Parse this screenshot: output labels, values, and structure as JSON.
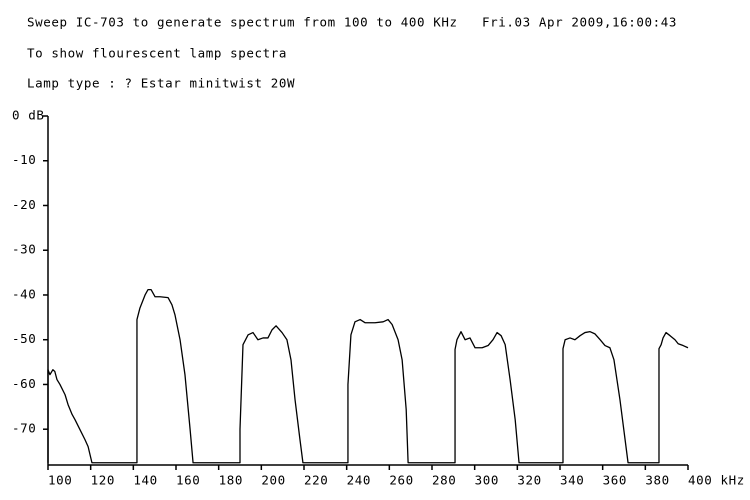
{
  "chart_data": {
    "type": "line",
    "title": "Sweep IC-703 to generate spectrum from 100 to 400 KHz   Fri.03 Apr 2009,16:00:43",
    "subtitle": "To show flourescent lamp spectra",
    "caption": "Lamp type : ? Estar minitwist 20W",
    "color": "#000000",
    "xlim": [
      100,
      400
    ],
    "xticks": [
      100,
      120,
      140,
      160,
      180,
      200,
      220,
      240,
      260,
      280,
      300,
      320,
      340,
      360,
      380,
      {
        "value": 400,
        "label": "400 kHz"
      }
    ],
    "ylim": [
      -78,
      0
    ],
    "yticks": [
      {
        "value": 0,
        "label": "0 dB"
      },
      -10,
      -20,
      -30,
      -40,
      -50,
      -60,
      -70
    ],
    "grid": false,
    "x": [
      100,
      100,
      100.9,
      102.3,
      103.2,
      104.2,
      105.6,
      108,
      109.4,
      111.3,
      112.7,
      115,
      117.3,
      118.8,
      120.6,
      141.7,
      141.7,
      143.1,
      145.5,
      146.9,
      148.3,
      150.2,
      152.5,
      156.3,
      158.1,
      159.5,
      161.9,
      164.2,
      166.6,
      168,
      190,
      190,
      191.4,
      193.8,
      196.1,
      198.4,
      200.8,
      203.1,
      205,
      206.9,
      209.7,
      212,
      213.9,
      215.8,
      218.1,
      219.5,
      240.6,
      240.6,
      242,
      243.9,
      246.3,
      248.6,
      253.3,
      257.1,
      259.4,
      261.3,
      264.1,
      266,
      267.9,
      268.8,
      290.8,
      290.8,
      291.7,
      293.6,
      295.5,
      297.8,
      300.2,
      303.5,
      306.3,
      308.6,
      310.5,
      312.4,
      314.3,
      316.6,
      319,
      320.8,
      341.4,
      341.4,
      342.4,
      344.7,
      347,
      349.4,
      351.7,
      354.1,
      356.4,
      358.8,
      361.1,
      363.4,
      365.3,
      368.1,
      370.5,
      371.9,
      386.4,
      386.4,
      387.4,
      388.3,
      389.7,
      391.6,
      393.9,
      395.4,
      397.7,
      400
    ],
    "values": [
      -77.5,
      -56.7,
      -57.8,
      -56.7,
      -57.1,
      -58.9,
      -60,
      -62.3,
      -64.5,
      -66.7,
      -67.9,
      -70.1,
      -72.3,
      -73.9,
      -77.5,
      -77.5,
      -45.5,
      -42.9,
      -40,
      -38.8,
      -38.8,
      -40.4,
      -40.4,
      -40.6,
      -42.2,
      -44.4,
      -50,
      -57.8,
      -70,
      -77.5,
      -77.5,
      -70,
      -51.1,
      -48.9,
      -48.4,
      -50,
      -49.6,
      -49.6,
      -47.8,
      -46.9,
      -48.4,
      -50,
      -54.5,
      -63.4,
      -72.3,
      -77.5,
      -77.5,
      -60,
      -48.9,
      -46,
      -45.5,
      -46.2,
      -46.2,
      -46,
      -45.5,
      -46.6,
      -50,
      -54.5,
      -65.6,
      -77.5,
      -77.5,
      -52.2,
      -50,
      -48.2,
      -50,
      -49.6,
      -51.8,
      -51.8,
      -51.3,
      -50,
      -48.4,
      -49.1,
      -51.1,
      -58.9,
      -67.9,
      -77.5,
      -77.5,
      -52,
      -50,
      -49.6,
      -50,
      -49.1,
      -48.4,
      -48.2,
      -48.7,
      -50,
      -51.3,
      -51.8,
      -54.5,
      -63.4,
      -72.3,
      -77.5,
      -77.5,
      -52,
      -51.1,
      -49.6,
      -48.4,
      -49.1,
      -50,
      -50.9,
      -51.3,
      -51.8
    ]
  }
}
